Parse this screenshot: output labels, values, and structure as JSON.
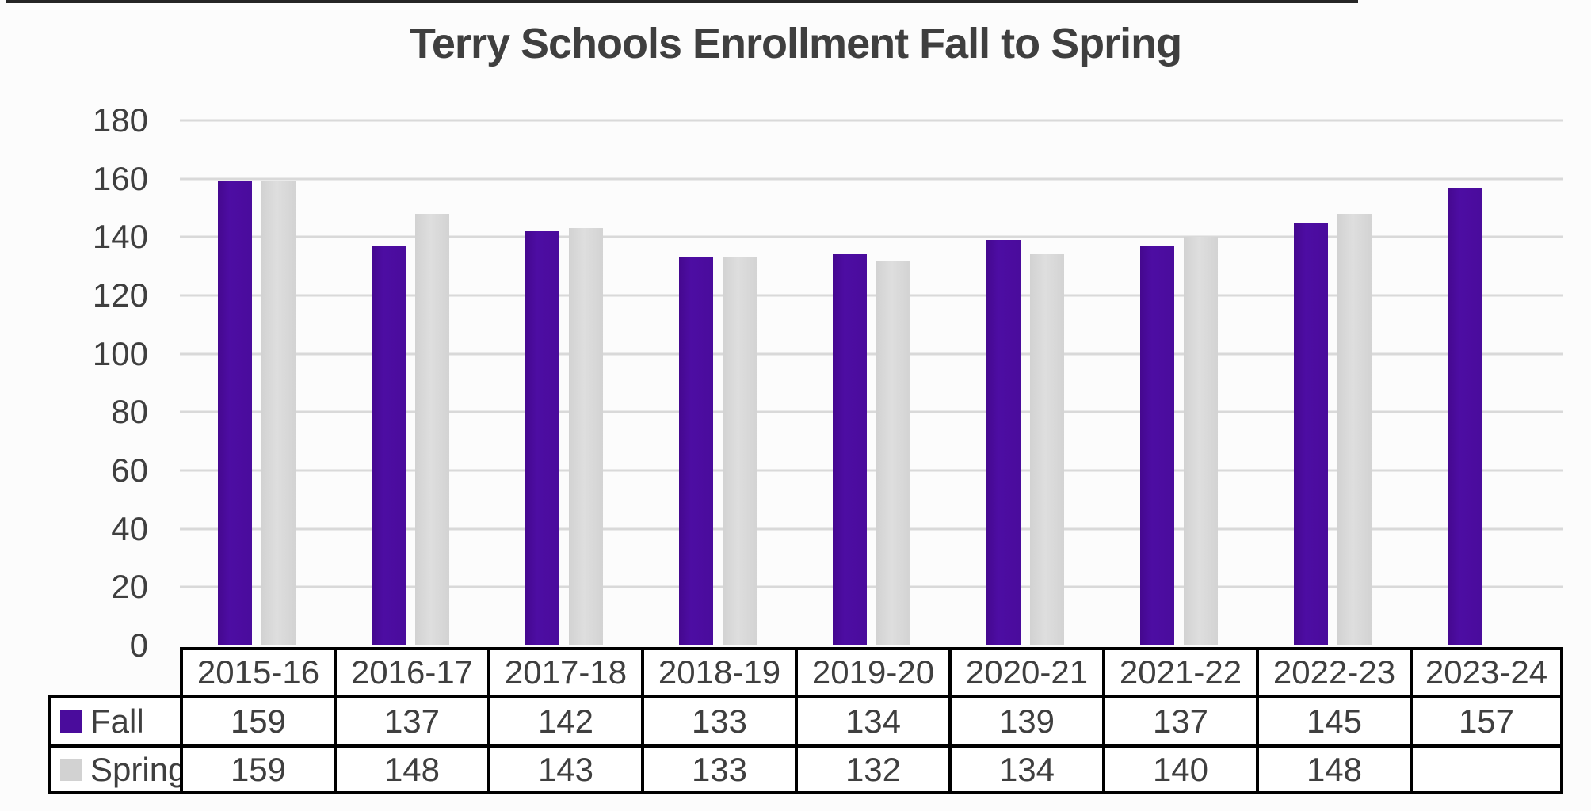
{
  "title": "Terry Schools Enrollment Fall to Spring",
  "colors": {
    "fall_bar": "#4A0C9C",
    "spring_bar": "#D8D8D8",
    "gridline": "#D9D9D9",
    "text": "#3F3F3F",
    "table_border": "#000000",
    "background": "#FCFCFC"
  },
  "chart_data": {
    "type": "bar",
    "title": "Terry Schools Enrollment Fall to Spring",
    "categories": [
      "2015-16",
      "2016-17",
      "2017-18",
      "2018-19",
      "2019-20",
      "2020-21",
      "2021-22",
      "2022-23",
      "2023-24"
    ],
    "series": [
      {
        "name": "Fall",
        "color": "#4A0C9C",
        "values": [
          159,
          137,
          142,
          133,
          134,
          139,
          137,
          145,
          157
        ]
      },
      {
        "name": "Spring",
        "color": "#D8D8D8",
        "values": [
          159,
          148,
          143,
          133,
          132,
          134,
          140,
          148,
          null
        ]
      }
    ],
    "xlabel": "",
    "ylabel": "",
    "ylim": [
      0,
      180
    ],
    "ytick_step": 20,
    "yticks": [
      180,
      160,
      140,
      120,
      100,
      80,
      60,
      40,
      20,
      0
    ],
    "grid": true,
    "legend_position": "data-table-left",
    "data_table": true
  }
}
